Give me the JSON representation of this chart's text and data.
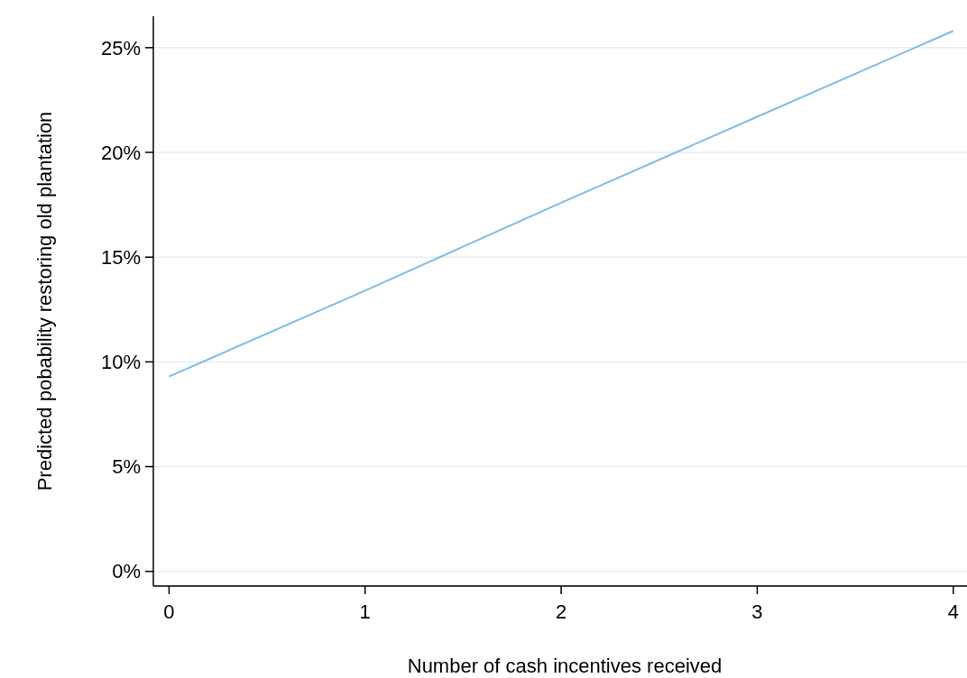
{
  "chart_data": {
    "type": "line",
    "xlabel": "Number of cash incentives received",
    "ylabel": "Predicted pobability restoring old plantation",
    "x": [
      0,
      1,
      2,
      3,
      4
    ],
    "series": [
      {
        "color": "#7fbce6",
        "values": [
          9.3,
          13.4,
          17.6,
          21.7,
          25.8
        ]
      }
    ],
    "xlim": [
      -0.08,
      4.07
    ],
    "xticks": [
      0,
      1,
      2,
      3,
      4
    ],
    "ylim": [
      -0.7,
      26.5
    ],
    "yticks": [
      {
        "value": 0,
        "label": "0%"
      },
      {
        "value": 5,
        "label": "5%"
      },
      {
        "value": 10,
        "label": "10%"
      },
      {
        "value": 15,
        "label": "15%"
      },
      {
        "value": 20,
        "label": "20%"
      },
      {
        "value": 25,
        "label": "25%"
      }
    ],
    "grid": "y",
    "marker": "none",
    "line_style": "solid"
  }
}
